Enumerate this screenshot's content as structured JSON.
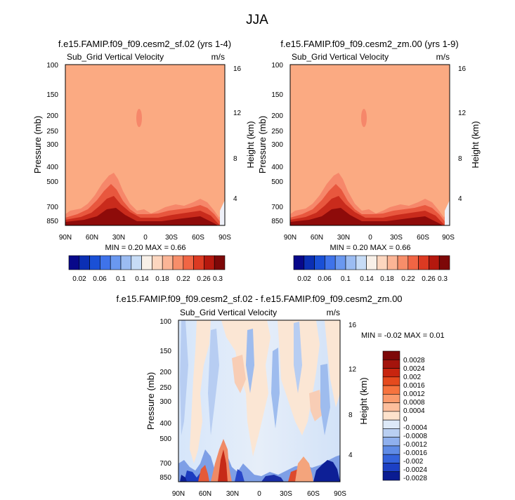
{
  "figure": {
    "title": "JJA"
  },
  "chart_data": [
    {
      "type": "heatmap",
      "title": "f.e15.FAMIP.f09_f09.cesm2_sf.02 (yrs 1-4)",
      "subtitle": "Sub_Grid Vertical Velocity",
      "units": "m/s",
      "ylabel": "Pressure (mb)",
      "ylabel_right": "Height (km)",
      "x_ticks": [
        "90N",
        "60N",
        "30N",
        "0",
        "30S",
        "60S",
        "90S"
      ],
      "y_ticks": [
        "100",
        "150",
        "200",
        "250",
        "300",
        "400",
        "500",
        "700",
        "850"
      ],
      "y2_ticks": [
        "16",
        "12",
        "8",
        "4"
      ],
      "min_label": "MIN =  0.20  MAX =  0.66",
      "colorbar_labels": [
        "0.02",
        "0.06",
        "0.1",
        "0.14",
        "0.18",
        "0.22",
        "0.26",
        "0.3"
      ]
    },
    {
      "type": "heatmap",
      "title": "f.e15.FAMIP.f09_f09.cesm2_zm.00 (yrs 1-9)",
      "subtitle": "Sub_Grid Vertical Velocity",
      "units": "m/s",
      "ylabel": "Pressure (mb)",
      "ylabel_right": "Height (km)",
      "x_ticks": [
        "90N",
        "60N",
        "30N",
        "0",
        "30S",
        "60S",
        "90S"
      ],
      "y_ticks": [
        "100",
        "150",
        "200",
        "250",
        "300",
        "400",
        "500",
        "700",
        "850"
      ],
      "y2_ticks": [
        "16",
        "12",
        "8",
        "4"
      ],
      "min_label": "MIN =  0.20  MAX =  0.66",
      "colorbar_labels": [
        "0.02",
        "0.06",
        "0.1",
        "0.14",
        "0.18",
        "0.22",
        "0.26",
        "0.3"
      ]
    },
    {
      "type": "heatmap",
      "title": "f.e15.FAMIP.f09_f09.cesm2_sf.02 - f.e15.FAMIP.f09_f09.cesm2_zm.00",
      "subtitle": "Sub_Grid Vertical Velocity",
      "units": "m/s",
      "ylabel": "Pressure (mb)",
      "ylabel_right": "Height (km)",
      "x_ticks": [
        "90N",
        "60N",
        "30N",
        "0",
        "30S",
        "60S",
        "90S"
      ],
      "y_ticks": [
        "100",
        "150",
        "200",
        "250",
        "300",
        "400",
        "500",
        "700",
        "850"
      ],
      "y2_ticks": [
        "16",
        "12",
        "8",
        "4"
      ],
      "min_label": "MIN =  -0.02   MAX =  0.01",
      "colorbar_labels": [
        "0.0028",
        "0.0024",
        "0.002",
        "0.0016",
        "0.0012",
        "0.0008",
        "0.0004",
        "0",
        "-0.0004",
        "-0.0008",
        "-0.0012",
        "-0.0016",
        "-0.002",
        "-0.0024",
        "-0.0028"
      ]
    }
  ],
  "colors": {
    "background_field": "#fbaa82",
    "seq_colorbar": [
      "#08088a",
      "#0b2fb4",
      "#1a50d6",
      "#3f73ea",
      "#6a98f0",
      "#9bbcf2",
      "#c7dcf6",
      "#f8f0e8",
      "#fcd6bf",
      "#fbb596",
      "#f78e6a",
      "#f16544",
      "#dc3a22",
      "#b5180e",
      "#7d0808"
    ],
    "div_colorbar": [
      "#7d0808",
      "#a4140c",
      "#c8250f",
      "#e64a1e",
      "#f7733e",
      "#fb9a6c",
      "#fdbe9c",
      "#fde2cc",
      "#dde9f8",
      "#b9cff2",
      "#8fb0ee",
      "#5f8be6",
      "#3463dc",
      "#1c40c4",
      "#0a1c92"
    ]
  }
}
